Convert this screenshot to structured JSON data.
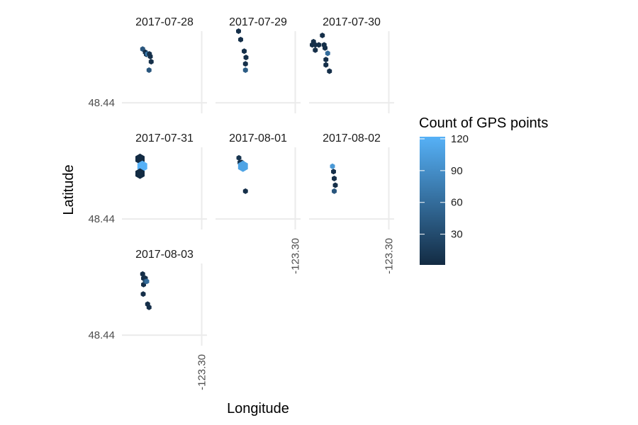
{
  "chart_data": {
    "type": "hexbin",
    "xlabel": "Longitude",
    "ylabel": "Latitude",
    "x_tick": "-123.30",
    "y_tick": "48.44",
    "x_tick_value": -123.3,
    "y_tick_value": 48.44,
    "xlim": [
      -123.345,
      -123.297
    ],
    "ylim": [
      48.435,
      48.474
    ],
    "legend": {
      "title": "Count of GPS points",
      "ticks": [
        30,
        60,
        90,
        120
      ],
      "range": [
        1,
        122
      ],
      "colors": [
        "#132B43",
        "#56B1F7"
      ],
      "placement": "right"
    },
    "facets": [
      {
        "label": "2017-07-28",
        "points": [
          {
            "x": -123.3333,
            "y": 48.4655,
            "count": 40
          },
          {
            "x": -123.3318,
            "y": 48.464,
            "count": 5
          },
          {
            "x": -123.3312,
            "y": 48.463,
            "count": 10
          },
          {
            "x": -123.3305,
            "y": 48.4632,
            "count": 75
          },
          {
            "x": -123.3295,
            "y": 48.4632,
            "count": 8
          },
          {
            "x": -123.329,
            "y": 48.462,
            "count": 5
          },
          {
            "x": -123.3285,
            "y": 48.4595,
            "count": 5
          },
          {
            "x": -123.3297,
            "y": 48.4555,
            "count": 40
          }
        ]
      },
      {
        "label": "2017-07-29",
        "points": [
          {
            "x": -123.332,
            "y": 48.474,
            "count": 5
          },
          {
            "x": -123.3308,
            "y": 48.47,
            "count": 5
          },
          {
            "x": -123.3288,
            "y": 48.4645,
            "count": 5
          },
          {
            "x": -123.3278,
            "y": 48.4615,
            "count": 5
          },
          {
            "x": -123.3281,
            "y": 48.4585,
            "count": 5
          },
          {
            "x": -123.3281,
            "y": 48.4555,
            "count": 45
          }
        ]
      },
      {
        "label": "2017-07-30",
        "points": [
          {
            "x": -123.3425,
            "y": 48.469,
            "count": 5
          },
          {
            "x": -123.3432,
            "y": 48.4675,
            "count": 5
          },
          {
            "x": -123.3415,
            "y": 48.465,
            "count": 5
          },
          {
            "x": -123.3415,
            "y": 48.4675,
            "count": 5
          },
          {
            "x": -123.3395,
            "y": 48.4675,
            "count": 5
          },
          {
            "x": -123.3375,
            "y": 48.472,
            "count": 5
          },
          {
            "x": -123.3365,
            "y": 48.4675,
            "count": 5
          },
          {
            "x": -123.336,
            "y": 48.466,
            "count": 5
          },
          {
            "x": -123.3345,
            "y": 48.4635,
            "count": 60
          },
          {
            "x": -123.3355,
            "y": 48.4605,
            "count": 5
          },
          {
            "x": -123.3355,
            "y": 48.458,
            "count": 5
          },
          {
            "x": -123.3335,
            "y": 48.455,
            "count": 5
          }
        ]
      },
      {
        "label": "2017-07-31",
        "points": [
          {
            "x": -123.3348,
            "y": 48.4685,
            "count": 1
          },
          {
            "x": -123.3335,
            "y": 48.465,
            "count": 122
          },
          {
            "x": -123.3348,
            "y": 48.4615,
            "count": 1
          }
        ]
      },
      {
        "label": "2017-08-01",
        "points": [
          {
            "x": -123.3318,
            "y": 48.469,
            "count": 10
          },
          {
            "x": -123.3312,
            "y": 48.4668,
            "count": 10
          },
          {
            "x": -123.3302,
            "y": 48.4668,
            "count": 5
          },
          {
            "x": -123.3295,
            "y": 48.465,
            "count": 110
          },
          {
            "x": -123.3281,
            "y": 48.4532,
            "count": 5
          }
        ]
      },
      {
        "label": "2017-08-02",
        "points": [
          {
            "x": -123.3318,
            "y": 48.465,
            "count": 100
          },
          {
            "x": -123.3312,
            "y": 48.4625,
            "count": 5
          },
          {
            "x": -123.3308,
            "y": 48.4592,
            "count": 5
          },
          {
            "x": -123.3302,
            "y": 48.456,
            "count": 5
          },
          {
            "x": -123.3308,
            "y": 48.4532,
            "count": 40
          }
        ]
      },
      {
        "label": "2017-08-03",
        "points": [
          {
            "x": -123.3333,
            "y": 48.469,
            "count": 5
          },
          {
            "x": -123.3328,
            "y": 48.467,
            "count": 5
          },
          {
            "x": -123.3318,
            "y": 48.467,
            "count": 5
          },
          {
            "x": -123.3328,
            "y": 48.464,
            "count": 5
          },
          {
            "x": -123.3318,
            "y": 48.4655,
            "count": 30
          },
          {
            "x": -123.331,
            "y": 48.4655,
            "count": 60
          },
          {
            "x": -123.333,
            "y": 48.4595,
            "count": 5
          },
          {
            "x": -123.3305,
            "y": 48.4547,
            "count": 5
          },
          {
            "x": -123.3297,
            "y": 48.4532,
            "count": 5
          }
        ]
      }
    ]
  }
}
